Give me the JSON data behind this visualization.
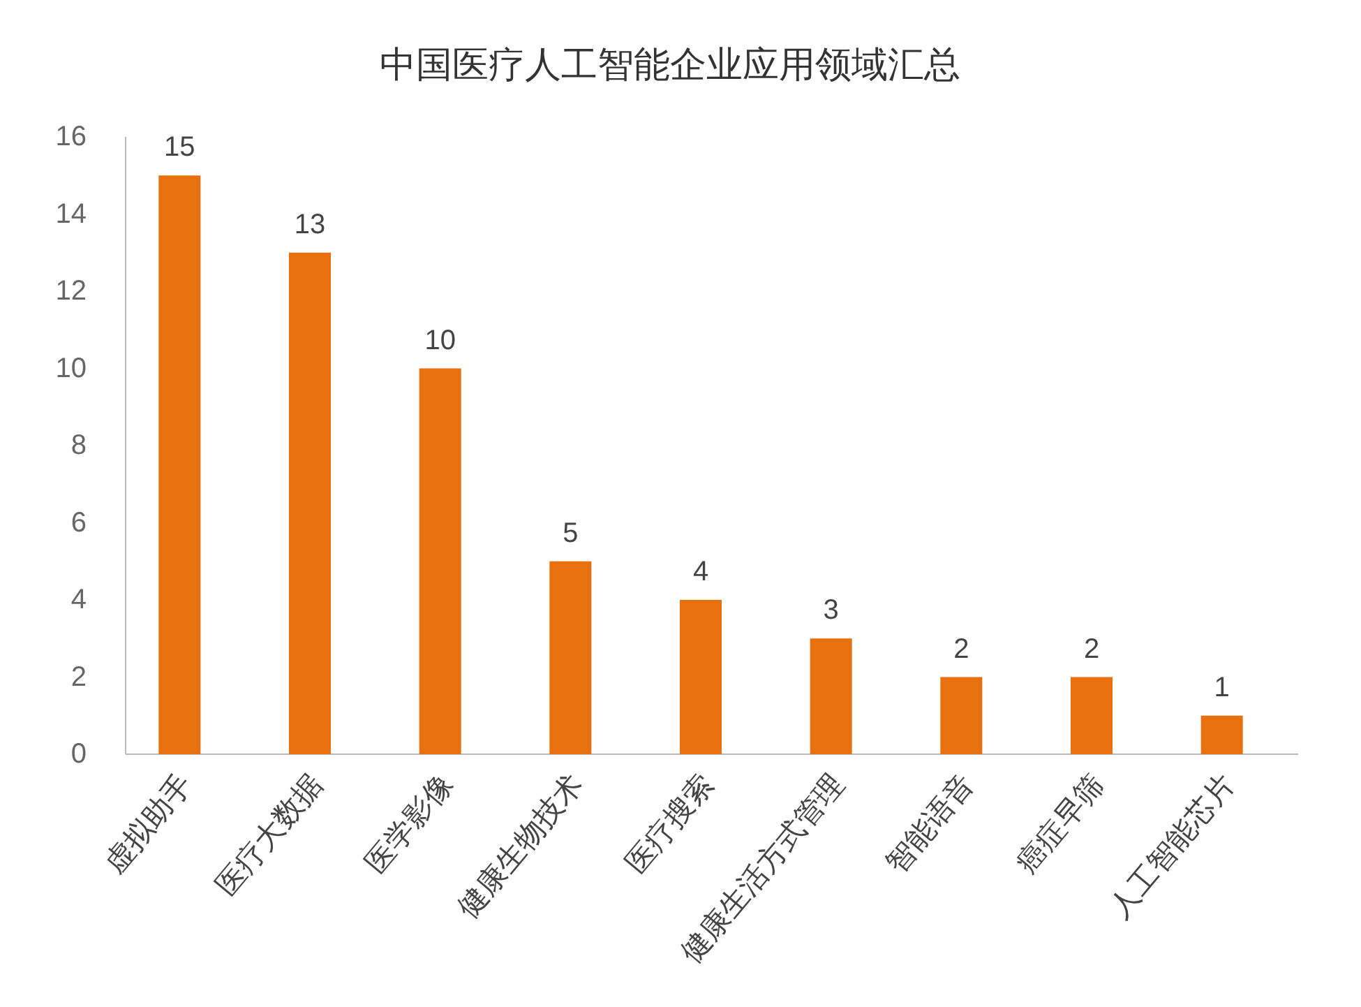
{
  "chart_data": {
    "type": "bar",
    "title": "中国医疗人工智能企业应用领域汇总",
    "categories": [
      "虚拟助手",
      "医疗大数据",
      "医学影像",
      "健康生物技术",
      "医疗搜索",
      "健康生活方式管理",
      "智能语音",
      "癌症早筛",
      "人工智能芯片"
    ],
    "values": [
      15,
      13,
      10,
      5,
      4,
      3,
      2,
      2,
      1
    ],
    "color": "#e8700f",
    "ylim": [
      0,
      16
    ],
    "yticks": [
      0,
      2,
      4,
      6,
      8,
      10,
      12,
      14,
      16
    ],
    "data_labels": true
  }
}
